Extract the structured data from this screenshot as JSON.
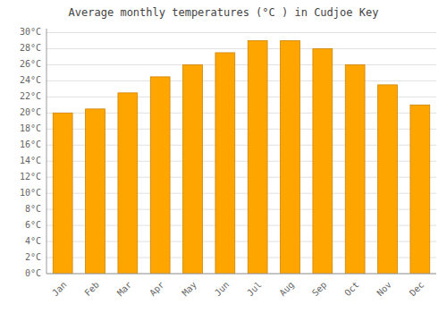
{
  "chart_data": {
    "type": "bar",
    "title": "Average monthly temperatures (°C ) in Cudjoe Key",
    "categories": [
      "Jan",
      "Feb",
      "Mar",
      "Apr",
      "May",
      "Jun",
      "Jul",
      "Aug",
      "Sep",
      "Oct",
      "Nov",
      "Dec"
    ],
    "values": [
      20.0,
      20.5,
      22.5,
      24.5,
      26.0,
      27.5,
      29.0,
      29.0,
      28.0,
      26.0,
      23.5,
      21.0
    ],
    "color": "#FFA500",
    "ylim": [
      0,
      30.5
    ],
    "yticks": [
      {
        "value": 0,
        "label": "0°C"
      },
      {
        "value": 2,
        "label": "2°C"
      },
      {
        "value": 4,
        "label": "4°C"
      },
      {
        "value": 6,
        "label": "6°C"
      },
      {
        "value": 8,
        "label": "8°C"
      },
      {
        "value": 10,
        "label": "10°C"
      },
      {
        "value": 12,
        "label": "12°C"
      },
      {
        "value": 14,
        "label": "14°C"
      },
      {
        "value": 16,
        "label": "16°C"
      },
      {
        "value": 18,
        "label": "18°C"
      },
      {
        "value": 20,
        "label": "20°C"
      },
      {
        "value": 22,
        "label": "22°C"
      },
      {
        "value": 24,
        "label": "24°C"
      },
      {
        "value": 26,
        "label": "26°C"
      },
      {
        "value": 28,
        "label": "28°C"
      },
      {
        "value": 30,
        "label": "30°C"
      }
    ],
    "grid": true
  }
}
